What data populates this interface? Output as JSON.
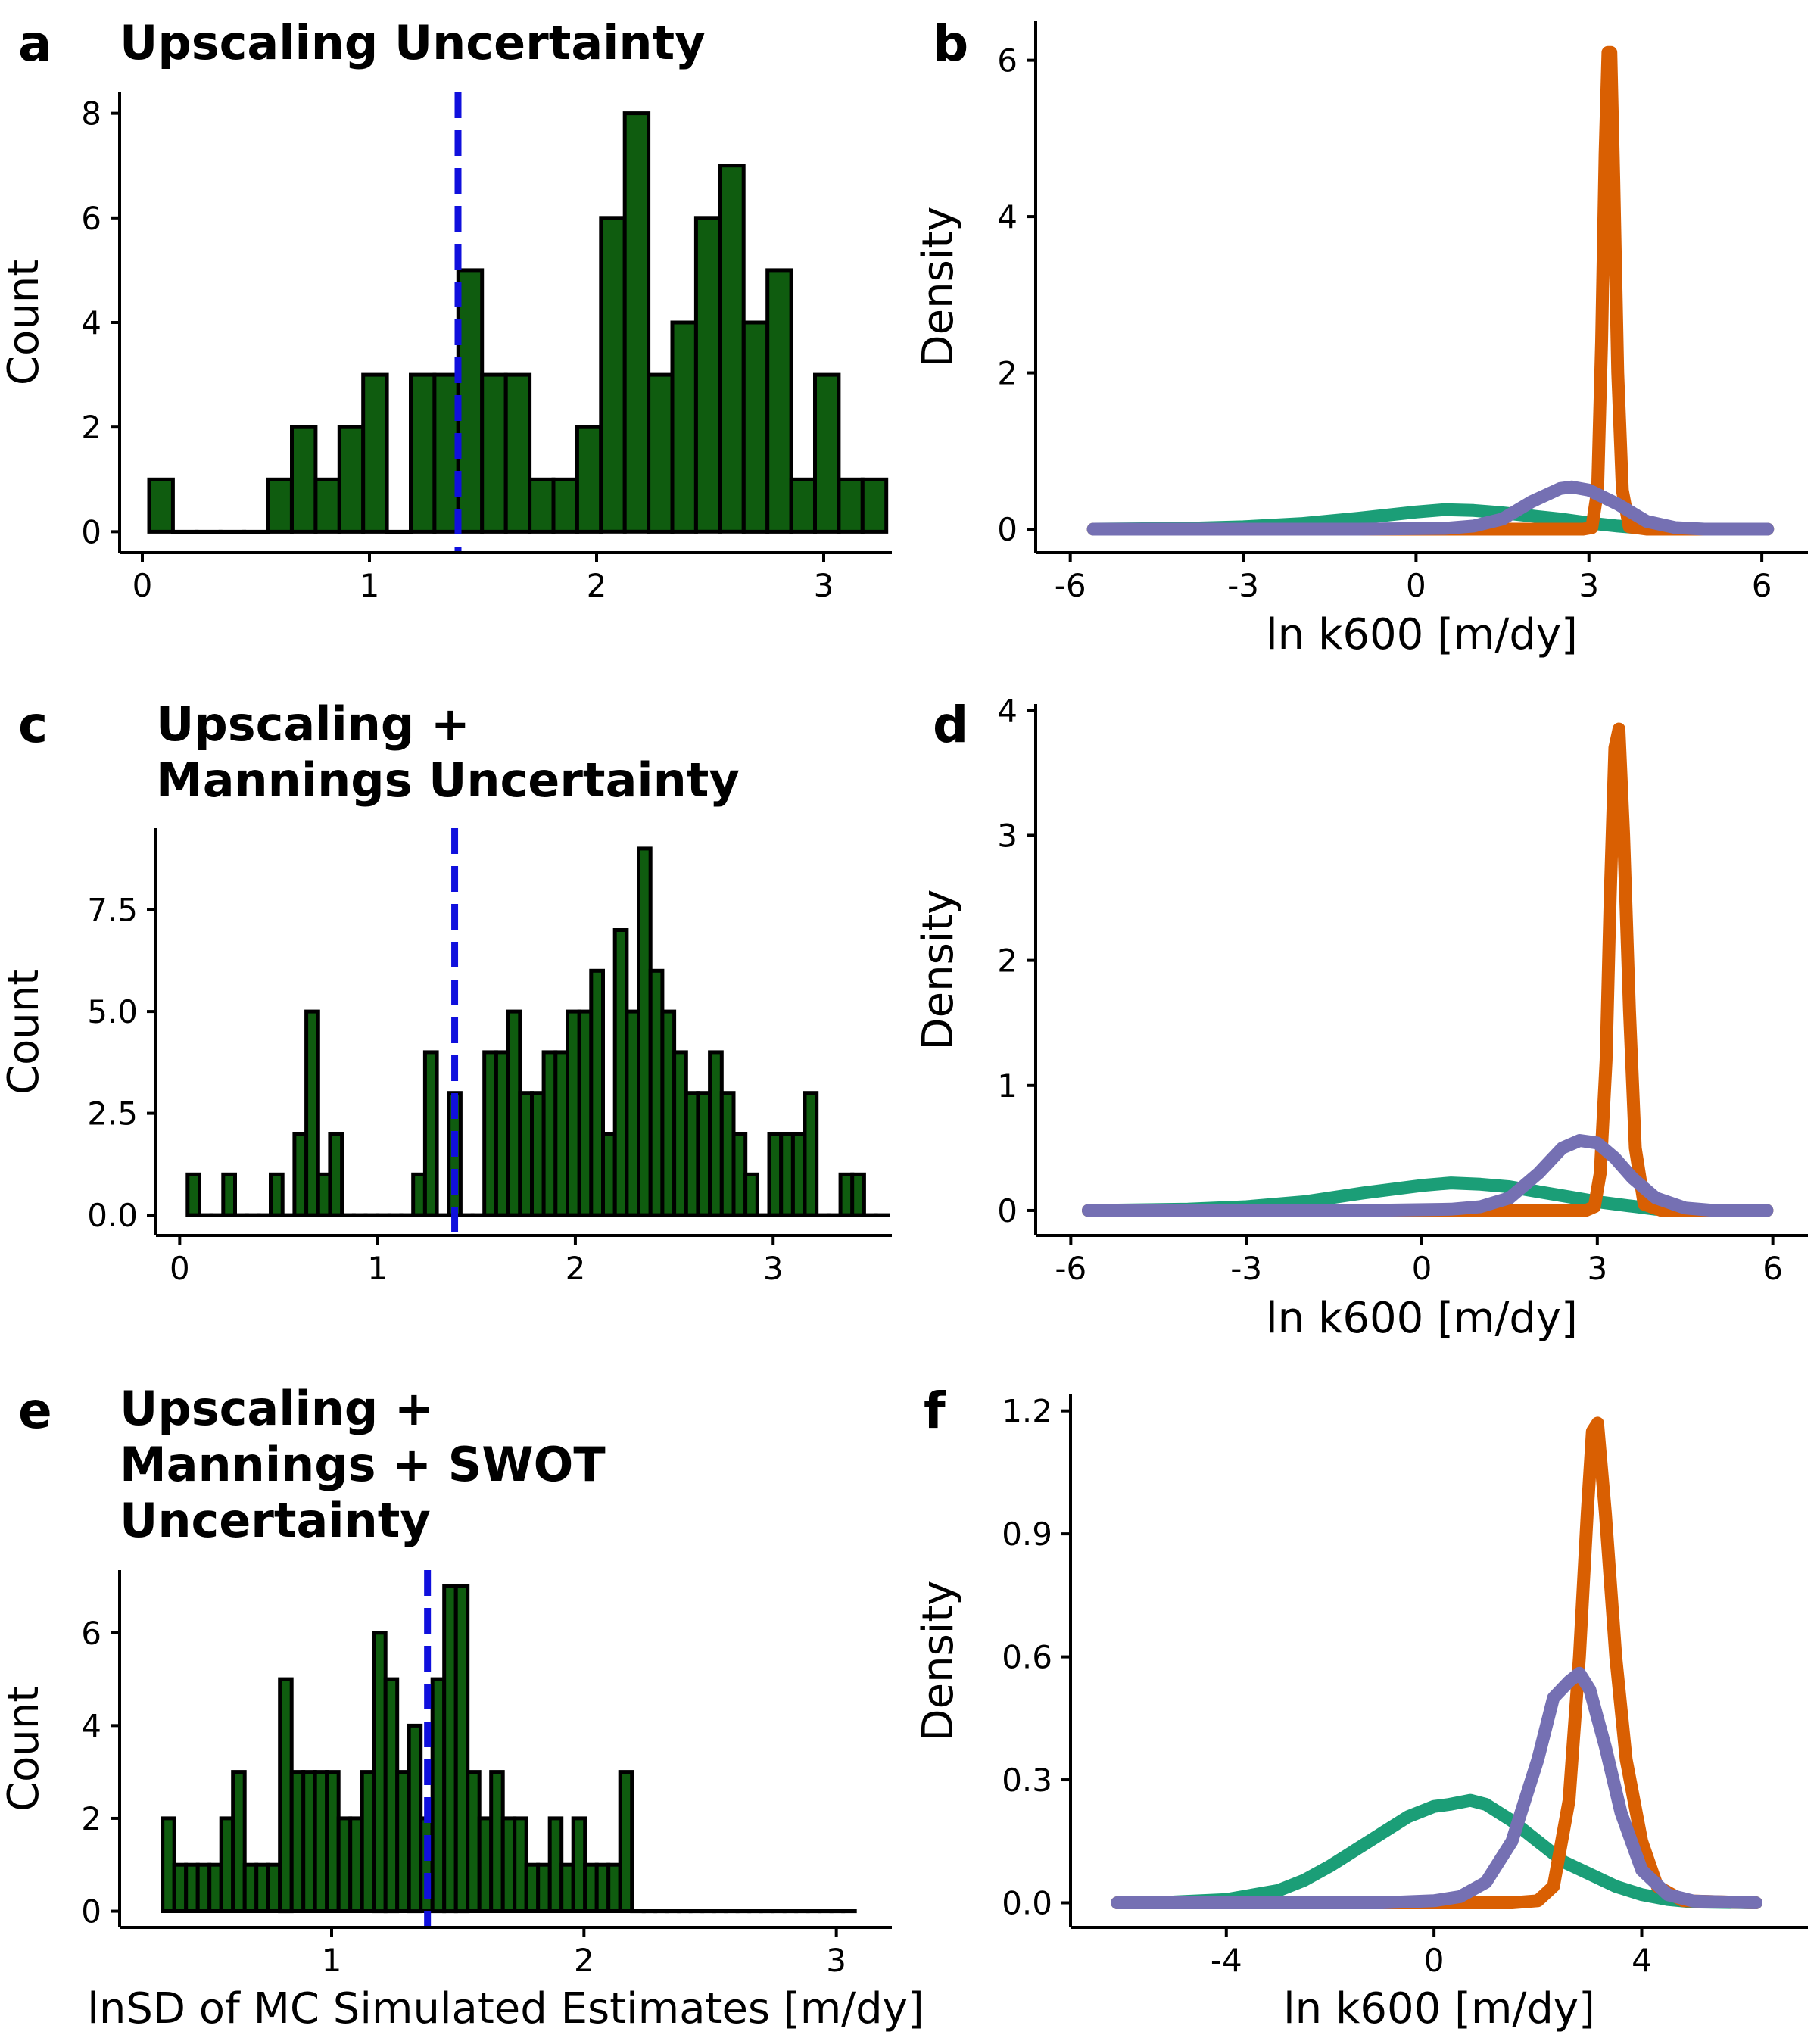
{
  "chart_data": [
    {
      "panel_letter": "a",
      "type": "bar",
      "title_lines": [
        "Upscaling Uncertainty"
      ],
      "xlabel": "",
      "ylabel": "Count",
      "xlim": [
        -0.1,
        3.3
      ],
      "ylim": [
        -0.4,
        8.4
      ],
      "xticks": [
        0,
        1,
        2,
        3
      ],
      "xtick_labels": [
        "0",
        "1",
        "2",
        "3"
      ],
      "yticks": [
        0,
        2,
        4,
        6,
        8
      ],
      "ytick_labels": [
        "0",
        "2",
        "4",
        "6",
        "8"
      ],
      "bin_start": 0.03,
      "bin_width": 0.1047,
      "values": [
        1,
        0,
        0,
        0,
        0,
        1,
        2,
        1,
        2,
        3,
        0,
        3,
        3,
        5,
        3,
        3,
        1,
        1,
        2,
        6,
        8,
        3,
        4,
        6,
        7,
        4,
        5,
        1,
        3,
        1,
        1,
        1,
        3,
        1,
        1,
        1,
        0,
        1,
        0,
        2,
        0,
        2,
        1,
        1,
        0,
        1,
        0,
        0,
        2,
        0,
        1,
        0,
        2,
        0,
        1,
        0,
        0,
        1,
        0,
        0,
        0
      ],
      "mean_line": 1.39,
      "bar_color": "#0f5c0f",
      "mean_line_color": "#1010dd"
    },
    {
      "panel_letter": "b",
      "type": "line",
      "title_lines": [],
      "xlabel": "ln k600 [m/dy]",
      "ylabel": "Density",
      "xlim": [
        -6.6,
        6.8
      ],
      "ylim": [
        -0.3,
        6.5
      ],
      "xticks": [
        -6,
        -3,
        0,
        3,
        6
      ],
      "xtick_labels": [
        "-6",
        "-3",
        "0",
        "3",
        "6"
      ],
      "yticks": [
        0,
        2,
        4,
        6
      ],
      "ytick_labels": [
        "0",
        "2",
        "4",
        "6"
      ],
      "series": [
        {
          "color": "#1b9e77",
          "x": [
            -5.6,
            -4,
            -3,
            -2,
            -1,
            0,
            0.5,
            1,
            1.5,
            2,
            2.5,
            3,
            3.5,
            4,
            5,
            6.1
          ],
          "values": [
            0,
            0.01,
            0.03,
            0.07,
            0.14,
            0.22,
            0.25,
            0.24,
            0.21,
            0.17,
            0.13,
            0.08,
            0.04,
            0.01,
            0,
            0
          ]
        },
        {
          "color": "#d95f02",
          "x": [
            -5.6,
            2.9,
            3.05,
            3.15,
            3.22,
            3.28,
            3.33,
            3.38,
            3.43,
            3.5,
            3.58,
            3.7,
            4,
            6.1
          ],
          "values": [
            0,
            0,
            0.02,
            0.5,
            2.4,
            4.8,
            6.1,
            6.1,
            4.5,
            2,
            0.5,
            0.03,
            0,
            0
          ]
        },
        {
          "color": "#7570b3",
          "x": [
            -5.6,
            -1,
            0.5,
            1,
            1.5,
            2,
            2.5,
            2.7,
            3,
            3.5,
            4,
            4.5,
            5,
            6.1
          ],
          "values": [
            0,
            0,
            0.01,
            0.04,
            0.13,
            0.35,
            0.52,
            0.54,
            0.5,
            0.32,
            0.1,
            0.02,
            0,
            0
          ]
        }
      ]
    },
    {
      "panel_letter": "c",
      "type": "bar",
      "title_lines": [
        "Upscaling +",
        "Mannings Uncertainty"
      ],
      "xlabel": "",
      "ylabel": "Count",
      "xlim": [
        -0.12,
        3.6
      ],
      "ylim": [
        -0.5,
        9.5
      ],
      "xticks": [
        0,
        1,
        2,
        3
      ],
      "xtick_labels": [
        "0",
        "1",
        "2",
        "3"
      ],
      "yticks": [
        0,
        2.5,
        5,
        7.5
      ],
      "ytick_labels": [
        "0.0",
        "2.5",
        "5.0",
        "7.5"
      ],
      "bin_start": 0.04,
      "bin_width": 0.06,
      "values": [
        1,
        0,
        0,
        1,
        0,
        0,
        0,
        1,
        0,
        2,
        5,
        1,
        2,
        0,
        0,
        0,
        0,
        0,
        0,
        1,
        4,
        0,
        3,
        0,
        0,
        4,
        4,
        5,
        3,
        3,
        4,
        4,
        5,
        5,
        6,
        2,
        7,
        5,
        9,
        6,
        5,
        4,
        3,
        3,
        4,
        3,
        2,
        1,
        0,
        2,
        2,
        2,
        3,
        0,
        0,
        1,
        1,
        0,
        0,
        0,
        0,
        0,
        0,
        1,
        1,
        1,
        1,
        2,
        0,
        1,
        0,
        0,
        0,
        0,
        0,
        0,
        0,
        0,
        1,
        0,
        0,
        0,
        0,
        0,
        0,
        0,
        0,
        0,
        0,
        0,
        0,
        0,
        0,
        0,
        0,
        0,
        0,
        0,
        0,
        0,
        0,
        0,
        0,
        0,
        0,
        0,
        0,
        0,
        0,
        0,
        0,
        0,
        0,
        0,
        0,
        0,
        0,
        0,
        0,
        0,
        0,
        0,
        0,
        0,
        0,
        0,
        0,
        0,
        0,
        0,
        0,
        0,
        0,
        0,
        0,
        0,
        0,
        0,
        0,
        0,
        0,
        0,
        0,
        0,
        0,
        0,
        0,
        0,
        0,
        0,
        0,
        0,
        0,
        0,
        0,
        0,
        0,
        0,
        0,
        0,
        0,
        0,
        0,
        0,
        0,
        0,
        0,
        0,
        0,
        0,
        0,
        0,
        0,
        0,
        0,
        0,
        0,
        0,
        0,
        0,
        0,
        0,
        0,
        0,
        0,
        0,
        0,
        0,
        0,
        0,
        0,
        0,
        0,
        0,
        0,
        0,
        0,
        0,
        0,
        0,
        0,
        0,
        0,
        0,
        0,
        0,
        0,
        0,
        0,
        0,
        0,
        0,
        0,
        0,
        0,
        0,
        0,
        0,
        0,
        0,
        0,
        0,
        0,
        0,
        0,
        0,
        0,
        0,
        0,
        0,
        0,
        0,
        0,
        0,
        0,
        0,
        0,
        0,
        0,
        0,
        0,
        0,
        0,
        0,
        0,
        0,
        0,
        0,
        0,
        0,
        0,
        0
      ],
      "mean_line": 1.39,
      "bar_color": "#0f5c0f",
      "mean_line_color": "#1010dd"
    },
    {
      "panel_letter": "d",
      "type": "line",
      "title_lines": [],
      "xlabel": "ln k600 [m/dy]",
      "ylabel": "Density",
      "xlim": [
        -6.6,
        6.6
      ],
      "ylim": [
        -0.2,
        4.05
      ],
      "xticks": [
        -6,
        -3,
        0,
        3,
        6
      ],
      "xtick_labels": [
        "-6",
        "-3",
        "0",
        "3",
        "6"
      ],
      "yticks": [
        0,
        1,
        2,
        3,
        4
      ],
      "ytick_labels": [
        "0",
        "1",
        "2",
        "3",
        "4"
      ],
      "series": [
        {
          "color": "#1b9e77",
          "x": [
            -5.7,
            -4,
            -3,
            -2,
            -1,
            0,
            0.5,
            1,
            1.5,
            2,
            2.5,
            3,
            3.5,
            4,
            5,
            5.9
          ],
          "values": [
            0,
            0.01,
            0.03,
            0.07,
            0.14,
            0.2,
            0.22,
            0.21,
            0.19,
            0.15,
            0.11,
            0.07,
            0.04,
            0.01,
            0,
            0
          ]
        },
        {
          "color": "#d95f02",
          "x": [
            -5.7,
            2.8,
            2.95,
            3.05,
            3.15,
            3.22,
            3.3,
            3.37,
            3.45,
            3.55,
            3.65,
            3.8,
            4.1,
            5.9
          ],
          "values": [
            0,
            0,
            0.03,
            0.3,
            1.2,
            2.5,
            3.7,
            3.85,
            3,
            1.6,
            0.5,
            0.05,
            0,
            0
          ]
        },
        {
          "color": "#7570b3",
          "x": [
            -5.7,
            -1,
            0.5,
            1,
            1.5,
            2,
            2.4,
            2.7,
            3,
            3.3,
            3.6,
            4,
            4.5,
            5,
            5.9
          ],
          "values": [
            0,
            0,
            0.01,
            0.03,
            0.1,
            0.3,
            0.5,
            0.56,
            0.54,
            0.42,
            0.26,
            0.1,
            0.02,
            0,
            0
          ]
        }
      ]
    },
    {
      "panel_letter": "e",
      "type": "bar",
      "title_lines": [
        "Upscaling +",
        "Mannings + SWOT",
        "Uncertainty"
      ],
      "xlabel": "lnSD of MC Simulated Estimates [m/dy]",
      "ylabel": "Count",
      "xlim": [
        0.16,
        3.22
      ],
      "ylim": [
        -0.35,
        7.35
      ],
      "xticks": [
        1,
        2,
        3
      ],
      "xtick_labels": [
        "1",
        "2",
        "3"
      ],
      "yticks": [
        0,
        2,
        4,
        6
      ],
      "ytick_labels": [
        "0",
        "2",
        "4",
        "6"
      ],
      "bin_start": 0.33,
      "bin_width": 0.0465,
      "values": [
        2,
        1,
        1,
        1,
        1,
        2,
        3,
        1,
        1,
        1,
        5,
        3,
        3,
        3,
        3,
        2,
        2,
        3,
        6,
        5,
        3,
        4,
        2,
        5,
        7,
        7,
        3,
        2,
        3,
        2,
        2,
        1,
        1,
        2,
        1,
        2,
        1,
        1,
        1,
        3,
        0,
        0,
        0,
        0,
        0,
        0,
        0,
        0,
        0,
        0,
        0,
        0,
        0,
        0,
        0,
        0,
        0,
        0,
        0
      ],
      "mean_line": 1.38,
      "bar_color": "#0f5c0f",
      "mean_line_color": "#1010dd"
    },
    {
      "panel_letter": "f",
      "type": "line",
      "title_lines": [],
      "xlabel": "ln k600 [m/dy]",
      "ylabel": "Density",
      "xlim": [
        -7,
        7.2
      ],
      "ylim": [
        -0.06,
        1.24
      ],
      "xticks": [
        -4,
        0,
        4
      ],
      "xtick_labels": [
        "-4",
        "0",
        "4"
      ],
      "yticks": [
        0,
        0.3,
        0.6,
        0.9,
        1.2
      ],
      "ytick_labels": [
        "0.0",
        "0.3",
        "0.6",
        "0.9",
        "1.2"
      ],
      "series": [
        {
          "color": "#1b9e77",
          "x": [
            -6.1,
            -5,
            -4,
            -3,
            -2.5,
            -2,
            -1.5,
            -1,
            -0.5,
            0,
            0.3,
            0.7,
            1,
            1.5,
            2,
            2.5,
            3,
            3.5,
            4,
            4.5,
            5,
            6.2
          ],
          "values": [
            0,
            0.002,
            0.008,
            0.03,
            0.055,
            0.09,
            0.13,
            0.17,
            0.21,
            0.235,
            0.24,
            0.25,
            0.24,
            0.2,
            0.15,
            0.1,
            0.07,
            0.04,
            0.02,
            0.008,
            0.002,
            0
          ]
        },
        {
          "color": "#d95f02",
          "x": [
            -6.1,
            1.5,
            2,
            2.3,
            2.6,
            2.8,
            2.95,
            3.05,
            3.15,
            3.3,
            3.5,
            3.7,
            4,
            4.3,
            4.8,
            6.2
          ],
          "values": [
            0,
            0,
            0.005,
            0.04,
            0.25,
            0.6,
            0.95,
            1.15,
            1.17,
            0.95,
            0.6,
            0.35,
            0.15,
            0.04,
            0.005,
            0
          ]
        },
        {
          "color": "#7570b3",
          "x": [
            -6.1,
            -1,
            0,
            0.5,
            1,
            1.5,
            2,
            2.3,
            2.6,
            2.8,
            3,
            3.3,
            3.6,
            4,
            4.5,
            5,
            6.2
          ],
          "values": [
            0,
            0,
            0.005,
            0.015,
            0.05,
            0.15,
            0.35,
            0.5,
            0.54,
            0.56,
            0.52,
            0.38,
            0.22,
            0.08,
            0.02,
            0.004,
            0
          ]
        }
      ]
    }
  ]
}
